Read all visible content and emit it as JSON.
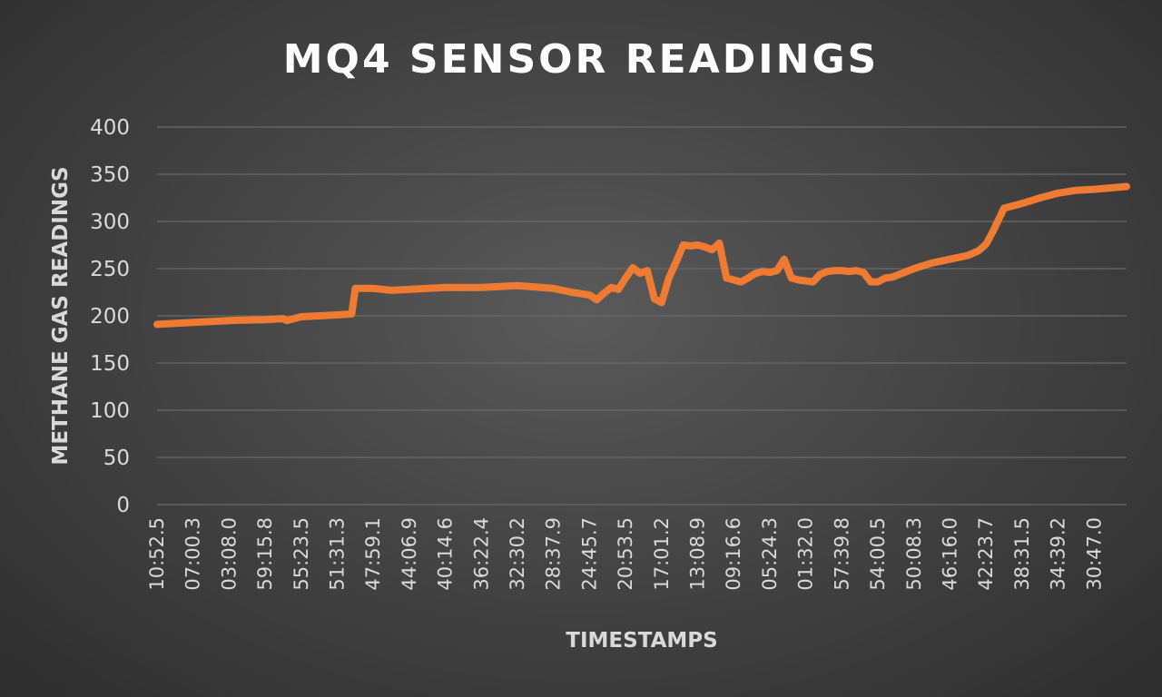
{
  "chart_data": {
    "type": "line",
    "title": "MQ4 SENSOR READINGS",
    "xlabel": "TIMESTAMPS",
    "ylabel": "METHANE GAS READINGS",
    "ylim": [
      0,
      400
    ],
    "yticks": [
      "0",
      "50",
      "100",
      "150",
      "200",
      "250",
      "300",
      "350",
      "400"
    ],
    "grid": true,
    "legend": "none",
    "line_color": "#ee7b31",
    "x_tick_labels": [
      "10:52.5",
      "07:00.3",
      "03:08.0",
      "59:15.8",
      "55:23.5",
      "51:31.3",
      "47:59.1",
      "44:06.9",
      "40:14.6",
      "36:22.4",
      "32:30.2",
      "28:37.9",
      "24:45.7",
      "20:53.5",
      "17:01.2",
      "13:08.9",
      "09:16.6",
      "05:24.3",
      "01:32.0",
      "57:39.8",
      "54:00.5",
      "50:08.3",
      "46:16.0",
      "42:23.7",
      "38:31.5",
      "34:39.2",
      "30:47.0"
    ],
    "series": [
      {
        "x": [
          0,
          1,
          2,
          3,
          3.5,
          3.6,
          4,
          4.5,
          5,
          5.4,
          5.5,
          6,
          6.5,
          7,
          8,
          9,
          10,
          11,
          11.5,
          12,
          12.2,
          12.4,
          12.6,
          12.8,
          13,
          13.2,
          13.4,
          13.6,
          13.8,
          14,
          14.2,
          14.4,
          14.6,
          14.8,
          15,
          15.2,
          15.4,
          15.6,
          15.8,
          16,
          16.2,
          16.4,
          16.6,
          16.8,
          17,
          17.2,
          17.4,
          17.6,
          17.8,
          18,
          18.2,
          18.4,
          18.6,
          18.8,
          19,
          19.2,
          19.4,
          19.6,
          19.8,
          20,
          20.2,
          20.4,
          21,
          21.5,
          22,
          22.5,
          22.8,
          23,
          23.2,
          23.5,
          24,
          24.5,
          25,
          25.5,
          26,
          26.9
        ],
        "y": [
          191,
          193,
          195,
          196,
          197,
          195,
          199,
          200,
          201,
          202,
          229,
          229,
          227,
          228,
          230,
          230,
          232,
          229,
          225,
          222,
          217,
          224,
          230,
          228,
          240,
          251,
          245,
          248,
          218,
          214,
          240,
          257,
          275,
          274,
          275,
          273,
          270,
          277,
          240,
          238,
          236,
          240,
          245,
          247,
          246,
          248,
          260,
          240,
          238,
          237,
          236,
          244,
          247,
          248,
          248,
          247,
          248,
          246,
          236,
          236,
          240,
          241,
          250,
          256,
          260,
          264,
          269,
          276,
          290,
          314,
          319,
          325,
          330,
          333,
          334,
          337
        ]
      }
    ]
  }
}
